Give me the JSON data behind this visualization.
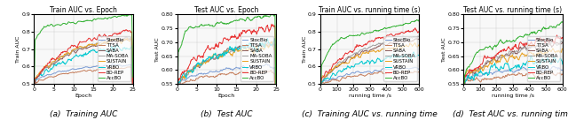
{
  "algorithms": [
    "StocBio",
    "TTSA",
    "SABA",
    "MA-SOBA",
    "SUSTAIN",
    "VRBO",
    "BO-REP",
    "AccBO"
  ],
  "colors": [
    "#7b9cd4",
    "#c47c5a",
    "#8b5a5a",
    "#a0a0a0",
    "#e8a020",
    "#00c8d0",
    "#e83030",
    "#30b030"
  ],
  "linestyles": [
    "-",
    "-",
    "-",
    "-",
    "-",
    "-",
    "-",
    "-"
  ],
  "subplot_titles": [
    "Train AUC vs. Epoch",
    "Test AUC vs. Epoch",
    "Train AUC vs. running time (s)",
    "Test AUC vs. running time (s)"
  ],
  "captions": [
    "(a)  Training AUC",
    "(b)  Test AUC",
    "(c)  Training AUC vs. running time",
    "(d)  Test AUC vs. running time"
  ],
  "train_epoch_ylim": [
    0.5,
    0.9
  ],
  "test_epoch_ylim": [
    0.55,
    0.8
  ],
  "train_time_ylim": [
    0.5,
    0.9
  ],
  "test_time_ylim": [
    0.55,
    0.8
  ],
  "epoch_xlim": [
    0,
    25
  ],
  "time_xlim": [
    0,
    600
  ],
  "xlabel_epoch": "Epoch",
  "xlabel_time": "running time /s",
  "ylabel_train": "Train AUC",
  "ylabel_test": "Test AUC"
}
